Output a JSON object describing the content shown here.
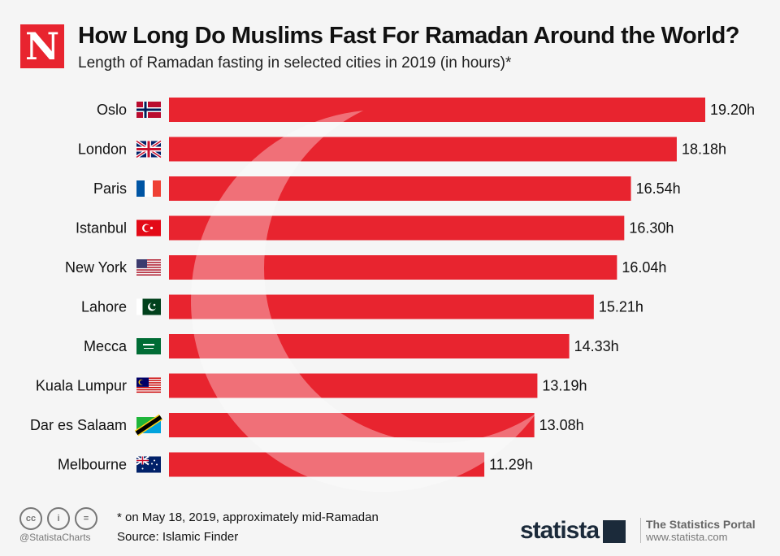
{
  "header": {
    "logo": "N",
    "title": "How Long Do Muslims Fast For Ramadan Around the World?",
    "subtitle": "Length of Ramadan fasting in selected cities in 2019 (in hours)*"
  },
  "chart_data": {
    "type": "bar",
    "orientation": "horizontal",
    "title": "How Long Do Muslims Fast For Ramadan Around the World?",
    "subtitle": "Length of Ramadan fasting in selected cities in 2019 (in hours)*",
    "categories": [
      "Oslo",
      "London",
      "Paris",
      "Istanbul",
      "New York",
      "Lahore",
      "Mecca",
      "Kuala Lumpur",
      "Dar es Salaam",
      "Melbourne"
    ],
    "values": [
      19.2,
      18.18,
      16.54,
      16.3,
      16.04,
      15.21,
      14.33,
      13.19,
      13.08,
      11.29
    ],
    "labels": [
      "19.20h",
      "18.18h",
      "16.54h",
      "16.30h",
      "16.04h",
      "15.21h",
      "14.33h",
      "13.19h",
      "13.08h",
      "11.29h"
    ],
    "flags": [
      "norway",
      "uk",
      "france",
      "turkey",
      "usa",
      "pakistan",
      "saudi-arabia",
      "malaysia",
      "tanzania",
      "australia"
    ],
    "bar_color": "#e8242f",
    "xlim": [
      0,
      19.2
    ]
  },
  "footer": {
    "note": "* on May 18, 2019, approximately mid-Ramadan",
    "source": "Source: Islamic Finder",
    "handle": "@StatistaCharts",
    "cc": [
      "cc",
      "i",
      "="
    ],
    "brand": "statista",
    "portal": "The Statistics Portal",
    "url": "www.statista.com"
  }
}
